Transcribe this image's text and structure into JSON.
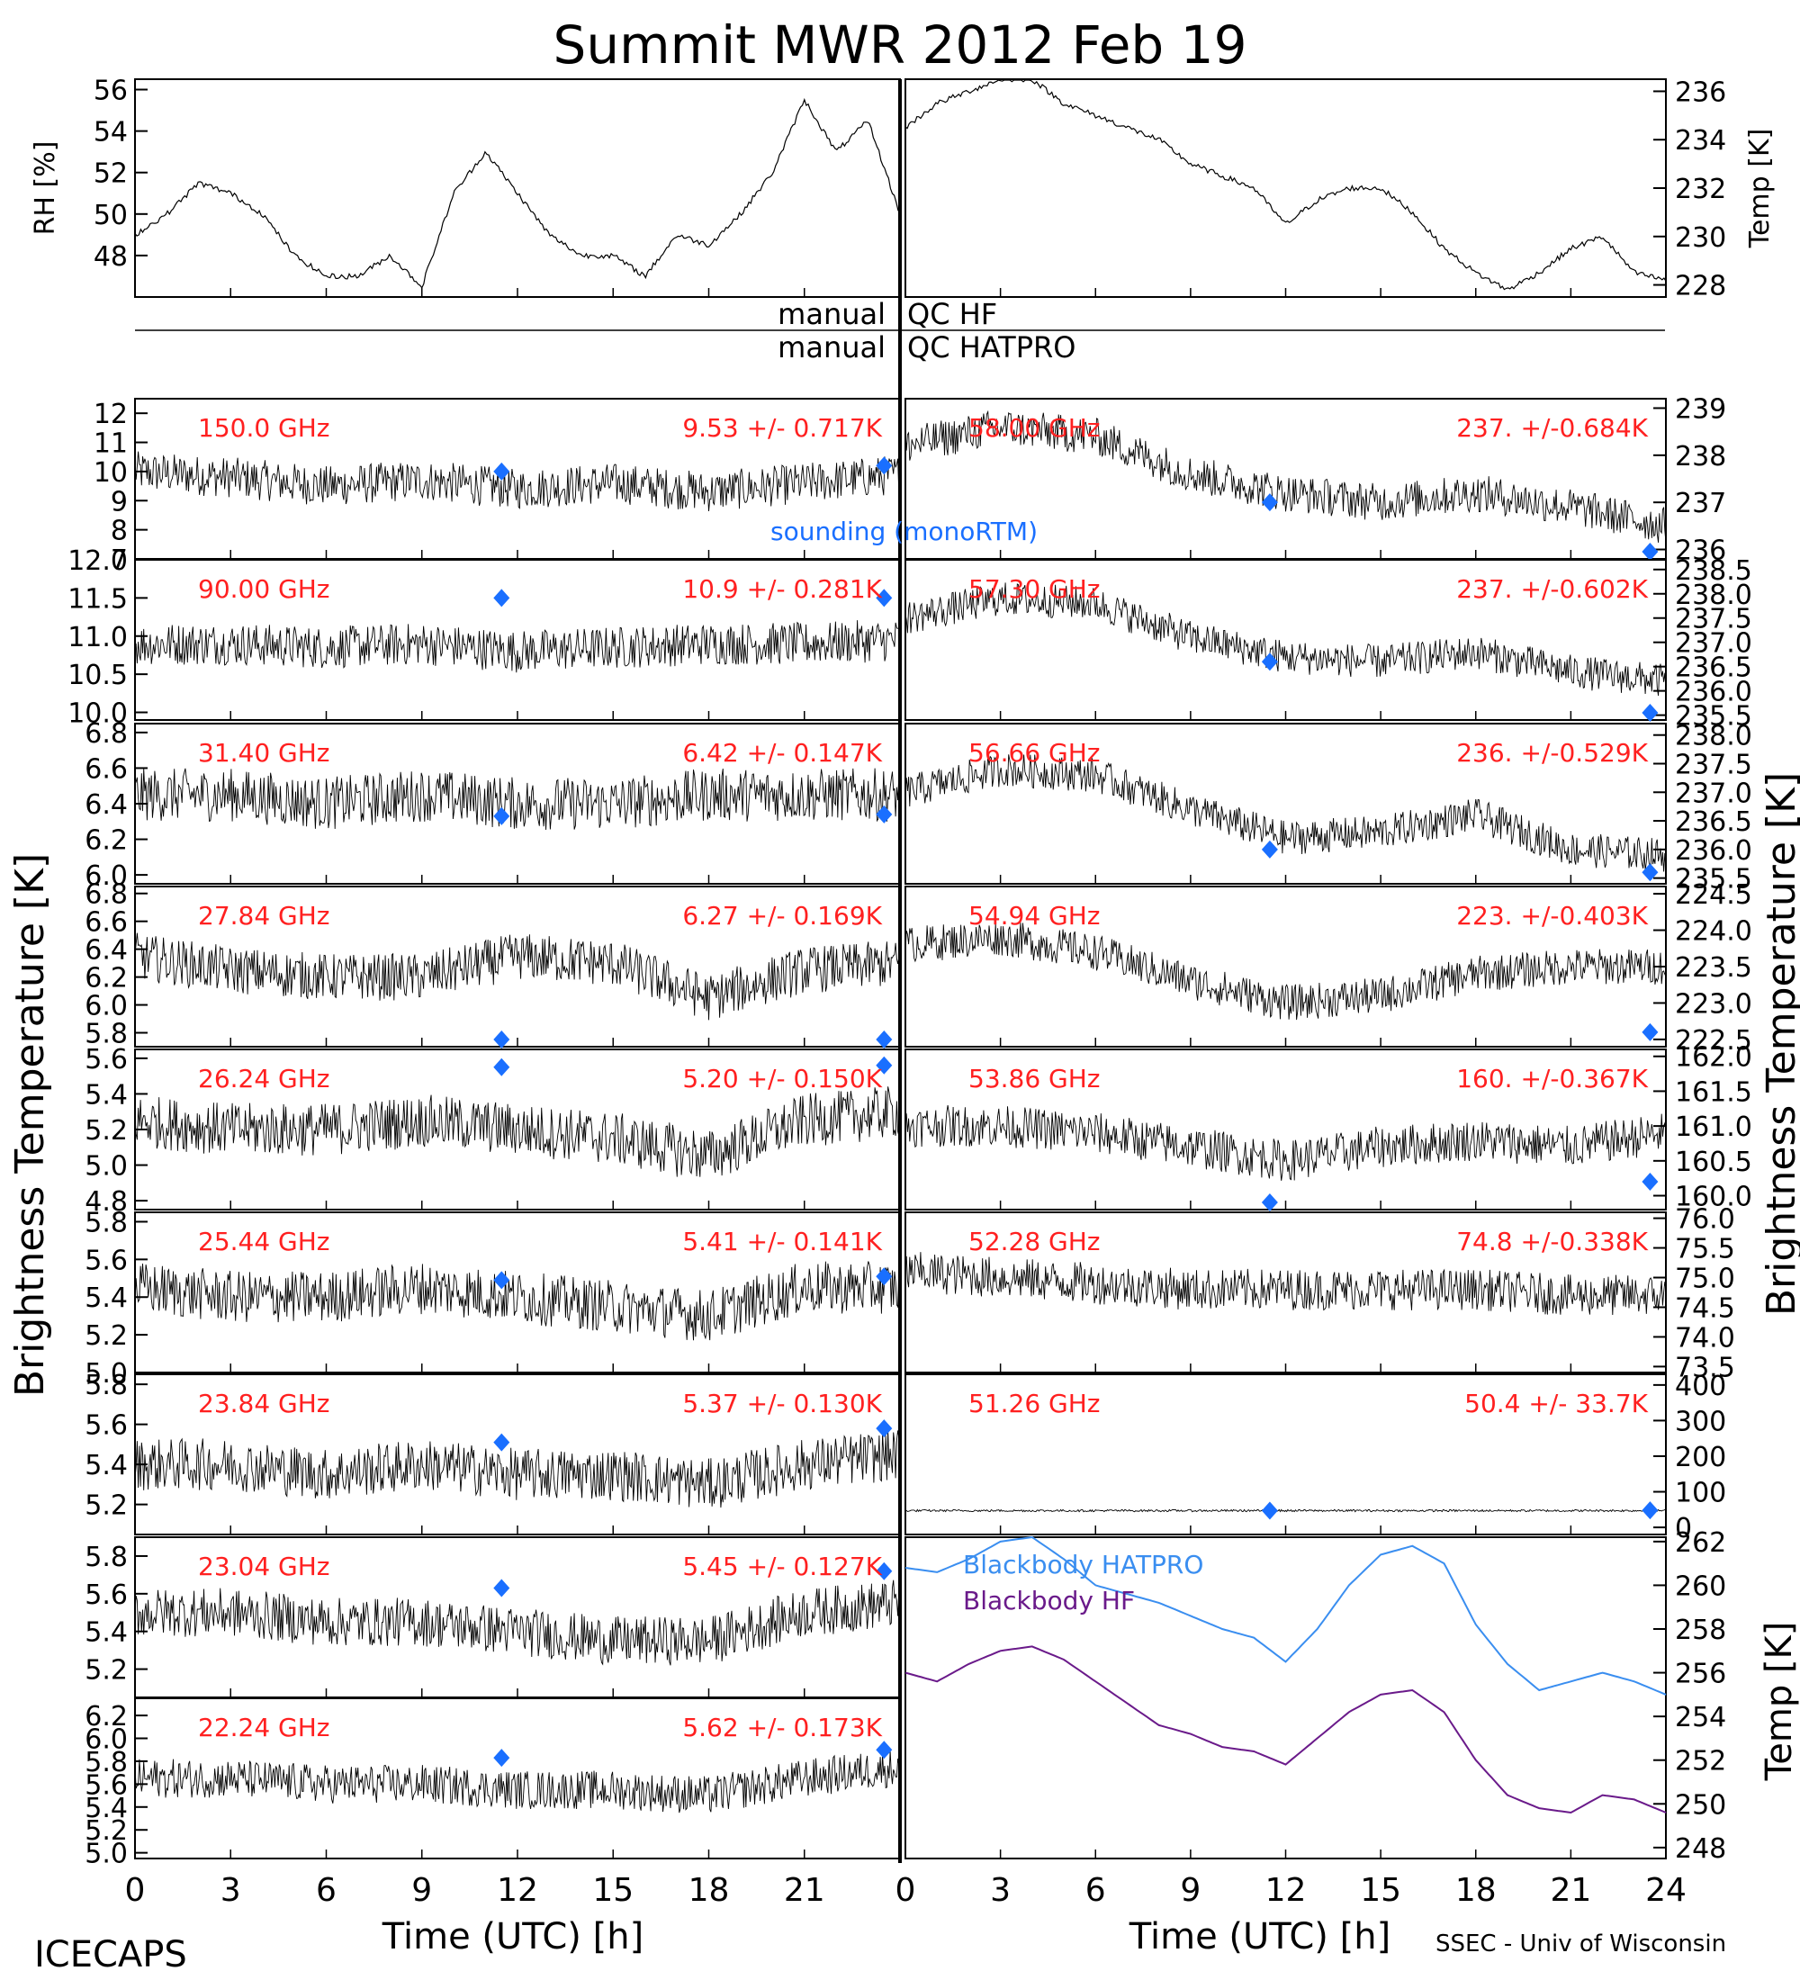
{
  "header": {
    "title": "Summit MWR 2012 Feb 19",
    "footer_left": "ICECAPS",
    "footer_right": "SSEC - Univ of Wisconsin",
    "ylabel_left": "Brightness Temperature [K]",
    "ylabel_right": "Brightness Temperature [K]"
  },
  "flags": {
    "hf_label_left": "manual",
    "hf_label_right": "QC HF",
    "hatpro_label_left": "manual",
    "hatpro_label_right": "QC HATPRO"
  },
  "axes": {
    "xlabel": "Time (UTC) [h]",
    "xticks": [
      "0",
      "3",
      "6",
      "9",
      "12",
      "15",
      "18",
      "21",
      "24"
    ]
  },
  "legend": {
    "sounding": "sounding (monoRTM)"
  },
  "colors": {
    "label_red": "#ff2020",
    "sounding_blue": "#1a6fff",
    "bb_hatpro": "#3a8ef0",
    "bb_hf": "#6a1a8a",
    "trace": "#000000"
  },
  "chart_data": [
    {
      "id": "rh",
      "type": "line",
      "ylabel": "RH [%]",
      "ylim": [
        46,
        56.5
      ],
      "yticks": [
        "48",
        "50",
        "52",
        "54",
        "56"
      ],
      "x": [
        0,
        1,
        2,
        3,
        4,
        5,
        6,
        7,
        8,
        9,
        10,
        11,
        12,
        13,
        14,
        15,
        16,
        17,
        18,
        19,
        20,
        21,
        22,
        23,
        24
      ],
      "y": [
        49,
        50,
        51.5,
        51,
        50,
        48,
        47,
        47,
        48,
        46.5,
        51,
        53,
        51,
        49,
        48,
        48,
        47,
        49,
        48.5,
        50,
        52,
        55.5,
        53,
        54.5,
        50
      ]
    },
    {
      "id": "temp",
      "type": "line",
      "ylabel": "Temp [K]",
      "ylim": [
        227.5,
        236.5
      ],
      "yticks": [
        "228",
        "230",
        "232",
        "234",
        "236"
      ],
      "x": [
        0,
        1,
        2,
        3,
        4,
        5,
        6,
        7,
        8,
        9,
        10,
        11,
        12,
        13,
        14,
        15,
        16,
        17,
        18,
        19,
        20,
        21,
        22,
        23,
        24
      ],
      "y": [
        234.5,
        235.5,
        236,
        236.5,
        236.5,
        235.5,
        235,
        234.5,
        234,
        233,
        232.5,
        232,
        230.5,
        231.5,
        232,
        232,
        231,
        229.5,
        228.5,
        227.8,
        228.5,
        229.5,
        230,
        228.5,
        228.2
      ]
    },
    {
      "id": "ch150",
      "type": "scatter",
      "freq": "150.0 GHz",
      "stats": "9.53 +/- 0.717K",
      "ylim": [
        7,
        12.5
      ],
      "yticks": [
        "7",
        "8",
        "9",
        "10",
        "11",
        "12"
      ],
      "x": [
        0,
        3,
        6,
        9,
        12,
        15,
        18,
        21,
        24
      ],
      "y": [
        10,
        9.8,
        9.5,
        9.7,
        9.4,
        9.6,
        9.3,
        9.6,
        9.9
      ],
      "noise": 0.7,
      "sounding": [
        {
          "x": 11.5,
          "y": 10
        },
        {
          "x": 23.5,
          "y": 10.2
        }
      ]
    },
    {
      "id": "ch90",
      "type": "scatter",
      "freq": "90.00 GHz",
      "stats": "10.9 +/- 0.281K",
      "ylim": [
        9.9,
        12.0
      ],
      "yticks": [
        "10.0",
        "10.5",
        "11.0",
        "11.5",
        "12.0"
      ],
      "x": [
        0,
        3,
        6,
        9,
        12,
        15,
        18,
        21,
        24
      ],
      "y": [
        10.9,
        10.9,
        10.85,
        10.9,
        10.8,
        10.85,
        10.9,
        10.9,
        10.95
      ],
      "noise": 0.28,
      "sounding": [
        {
          "x": 11.5,
          "y": 11.5
        },
        {
          "x": 23.5,
          "y": 11.5
        }
      ]
    },
    {
      "id": "ch3140",
      "type": "scatter",
      "freq": "31.40 GHz",
      "stats": "6.42 +/- 0.147K",
      "ylim": [
        5.95,
        6.85
      ],
      "yticks": [
        "6.0",
        "6.2",
        "6.4",
        "6.6",
        "6.8"
      ],
      "x": [
        0,
        3,
        6,
        9,
        12,
        15,
        18,
        21,
        24
      ],
      "y": [
        6.45,
        6.45,
        6.4,
        6.45,
        6.4,
        6.4,
        6.45,
        6.45,
        6.45
      ],
      "noise": 0.15,
      "sounding": [
        {
          "x": 11.5,
          "y": 6.33
        },
        {
          "x": 23.5,
          "y": 6.34
        }
      ]
    },
    {
      "id": "ch2784",
      "type": "scatter",
      "freq": "27.84 GHz",
      "stats": "6.27 +/- 0.169K",
      "ylim": [
        5.7,
        6.85
      ],
      "yticks": [
        "5.8",
        "6.0",
        "6.2",
        "6.4",
        "6.6",
        "6.8"
      ],
      "x": [
        0,
        3,
        6,
        9,
        12,
        15,
        18,
        21,
        24
      ],
      "y": [
        6.35,
        6.25,
        6.2,
        6.2,
        6.35,
        6.3,
        6.05,
        6.25,
        6.3
      ],
      "noise": 0.17,
      "sounding": [
        {
          "x": 11.5,
          "y": 5.72
        },
        {
          "x": 23.5,
          "y": 5.73
        }
      ]
    },
    {
      "id": "ch2624",
      "type": "scatter",
      "freq": "26.24 GHz",
      "stats": "5.20 +/- 0.150K",
      "ylim": [
        4.75,
        5.65
      ],
      "yticks": [
        "4.8",
        "5.0",
        "5.2",
        "5.4",
        "5.6"
      ],
      "x": [
        0,
        3,
        6,
        9,
        12,
        15,
        18,
        21,
        24
      ],
      "y": [
        5.25,
        5.2,
        5.2,
        5.25,
        5.2,
        5.15,
        5.05,
        5.25,
        5.3
      ],
      "noise": 0.15,
      "sounding": [
        {
          "x": 11.5,
          "y": 5.55
        },
        {
          "x": 23.5,
          "y": 5.56
        }
      ]
    },
    {
      "id": "ch2544",
      "type": "scatter",
      "freq": "25.44 GHz",
      "stats": "5.41 +/- 0.141K",
      "ylim": [
        5.0,
        5.85
      ],
      "yticks": [
        "5.0",
        "5.2",
        "5.4",
        "5.6",
        "5.8"
      ],
      "x": [
        0,
        3,
        6,
        9,
        12,
        15,
        18,
        21,
        24
      ],
      "y": [
        5.45,
        5.4,
        5.4,
        5.45,
        5.4,
        5.35,
        5.3,
        5.45,
        5.45
      ],
      "noise": 0.14,
      "sounding": [
        {
          "x": 11.5,
          "y": 5.49
        },
        {
          "x": 23.5,
          "y": 5.51
        }
      ]
    },
    {
      "id": "ch2384",
      "type": "scatter",
      "freq": "23.84 GHz",
      "stats": "5.37 +/- 0.130K",
      "ylim": [
        5.05,
        5.85
      ],
      "yticks": [
        "5.0",
        "5.2",
        "5.4",
        "5.6",
        "5.8"
      ],
      "x": [
        0,
        3,
        6,
        9,
        12,
        15,
        18,
        21,
        24
      ],
      "y": [
        5.4,
        5.4,
        5.35,
        5.4,
        5.35,
        5.35,
        5.3,
        5.4,
        5.45
      ],
      "noise": 0.13,
      "sounding": [
        {
          "x": 11.5,
          "y": 5.51
        },
        {
          "x": 23.5,
          "y": 5.58
        }
      ]
    },
    {
      "id": "ch2304",
      "type": "scatter",
      "freq": "23.04 GHz",
      "stats": "5.45 +/- 0.127K",
      "ylim": [
        5.05,
        5.9
      ],
      "yticks": [
        "5.0",
        "5.2",
        "5.4",
        "5.6",
        "5.8"
      ],
      "x": [
        0,
        3,
        6,
        9,
        12,
        15,
        18,
        21,
        24
      ],
      "y": [
        5.5,
        5.5,
        5.45,
        5.45,
        5.4,
        5.35,
        5.35,
        5.5,
        5.55
      ],
      "noise": 0.13,
      "sounding": [
        {
          "x": 11.5,
          "y": 5.63
        },
        {
          "x": 23.5,
          "y": 5.72
        }
      ]
    },
    {
      "id": "ch2224",
      "type": "scatter",
      "freq": "22.24 GHz",
      "stats": "5.62 +/- 0.173K",
      "ylim": [
        4.95,
        6.35
      ],
      "yticks": [
        "5.0",
        "5.2",
        "5.4",
        "5.6",
        "5.8",
        "6.0",
        "6.2"
      ],
      "x": [
        0,
        3,
        6,
        9,
        12,
        15,
        18,
        21,
        24
      ],
      "y": [
        5.65,
        5.65,
        5.6,
        5.6,
        5.55,
        5.55,
        5.5,
        5.65,
        5.75
      ],
      "noise": 0.17,
      "sounding": [
        {
          "x": 11.5,
          "y": 5.83
        },
        {
          "x": 23.5,
          "y": 5.9
        }
      ]
    },
    {
      "id": "ch5800",
      "type": "scatter",
      "freq": "58.00 GHz",
      "stats": "237. +/-0.684K",
      "ylim": [
        235.8,
        239.2
      ],
      "yticks": [
        "236",
        "237",
        "238",
        "239"
      ],
      "x": [
        0,
        3,
        6,
        9,
        12,
        15,
        18,
        21,
        24
      ],
      "y": [
        238.2,
        238.6,
        238.4,
        237.6,
        237.2,
        237,
        237.2,
        236.9,
        236.5
      ],
      "noise": 0.4,
      "sounding": [
        {
          "x": 11.5,
          "y": 237
        },
        {
          "x": 23.5,
          "y": 235.9
        }
      ]
    },
    {
      "id": "ch5730",
      "type": "scatter",
      "freq": "57.30 GHz",
      "stats": "237. +/-0.602K",
      "ylim": [
        235.4,
        238.7
      ],
      "yticks": [
        "235.5",
        "236.0",
        "236.5",
        "237.0",
        "237.5",
        "238.0",
        "238.5"
      ],
      "x": [
        0,
        3,
        6,
        9,
        12,
        15,
        18,
        21,
        24
      ],
      "y": [
        237.5,
        237.9,
        237.8,
        237.1,
        236.7,
        236.6,
        236.8,
        236.4,
        236.2
      ],
      "noise": 0.35,
      "sounding": [
        {
          "x": 11.5,
          "y": 236.6
        },
        {
          "x": 23.5,
          "y": 235.5
        }
      ]
    },
    {
      "id": "ch5666",
      "type": "scatter",
      "freq": "56.66 GHz",
      "stats": "236. +/-0.529K",
      "ylim": [
        235.4,
        238.2
      ],
      "yticks": [
        "235.5",
        "236.0",
        "236.5",
        "237.0",
        "237.5",
        "238.0"
      ],
      "x": [
        0,
        3,
        6,
        9,
        12,
        15,
        18,
        21,
        24
      ],
      "y": [
        237,
        237.4,
        237.3,
        236.7,
        236.2,
        236.3,
        236.6,
        236,
        235.9
      ],
      "noise": 0.3,
      "sounding": [
        {
          "x": 11.5,
          "y": 236
        },
        {
          "x": 23.5,
          "y": 235.6
        }
      ]
    },
    {
      "id": "ch5494",
      "type": "scatter",
      "freq": "54.94 GHz",
      "stats": "223. +/-0.403K",
      "ylim": [
        222.4,
        224.6
      ],
      "yticks": [
        "222.5",
        "223.0",
        "223.5",
        "224.0",
        "224.5"
      ],
      "x": [
        0,
        3,
        6,
        9,
        12,
        15,
        18,
        21,
        24
      ],
      "y": [
        223.8,
        223.9,
        223.7,
        223.3,
        223,
        223.1,
        223.4,
        223.5,
        223.5
      ],
      "noise": 0.25,
      "sounding": [
        {
          "x": 23.5,
          "y": 222.6
        }
      ]
    },
    {
      "id": "ch5386",
      "type": "scatter",
      "freq": "53.86 GHz",
      "stats": "160. +/-0.367K",
      "ylim": [
        159.8,
        162.1
      ],
      "yticks": [
        "160.0",
        "160.5",
        "161.0",
        "161.5",
        "162.0"
      ],
      "x": [
        0,
        3,
        6,
        9,
        12,
        15,
        18,
        21,
        24
      ],
      "y": [
        161,
        161,
        160.9,
        160.7,
        160.5,
        160.7,
        160.8,
        160.7,
        160.9
      ],
      "noise": 0.3,
      "sounding": [
        {
          "x": 11.5,
          "y": 159.9
        },
        {
          "x": 23.5,
          "y": 160.2
        }
      ]
    },
    {
      "id": "ch5228",
      "type": "scatter",
      "freq": "52.28 GHz",
      "stats": "74.8 +/-0.338K",
      "ylim": [
        73.4,
        76.1
      ],
      "yticks": [
        "73.5",
        "74.0",
        "74.5",
        "75.0",
        "75.5",
        "76.0"
      ],
      "x": [
        0,
        3,
        6,
        9,
        12,
        15,
        18,
        21,
        24
      ],
      "y": [
        75.1,
        75,
        74.9,
        74.8,
        74.8,
        74.8,
        74.8,
        74.7,
        74.7
      ],
      "noise": 0.35,
      "sounding": []
    },
    {
      "id": "ch5126",
      "type": "scatter",
      "freq": "51.26 GHz",
      "stats": "50.4 +/- 33.7K",
      "ylim": [
        -20,
        430
      ],
      "yticks": [
        "0",
        "100",
        "200",
        "300",
        "400"
      ],
      "x": [
        0,
        3,
        6,
        9,
        12,
        15,
        18,
        21,
        24
      ],
      "y": [
        47,
        47,
        47,
        47,
        47,
        47,
        47,
        47,
        47
      ],
      "noise": 3,
      "sounding": [
        {
          "x": 11.5,
          "y": 47
        },
        {
          "x": 23.5,
          "y": 48
        }
      ]
    },
    {
      "id": "blackbody",
      "type": "line",
      "ylabel": "Temp [K]",
      "ylim": [
        247.5,
        262.2
      ],
      "yticks": [
        "248",
        "250",
        "252",
        "254",
        "256",
        "258",
        "260",
        "262"
      ],
      "series": [
        {
          "name": "Blackbody HATPRO",
          "x": [
            0,
            1,
            2,
            3,
            4,
            5,
            6,
            7,
            8,
            9,
            10,
            11,
            12,
            13,
            14,
            15,
            16,
            17,
            18,
            19,
            20,
            21,
            22,
            23,
            24
          ],
          "y": [
            260.8,
            260.6,
            261.2,
            262,
            262.2,
            261.2,
            260,
            259.6,
            259.2,
            258.6,
            258,
            257.6,
            256.5,
            258,
            260,
            261.4,
            261.8,
            261,
            258.2,
            256.4,
            255.2,
            255.6,
            256,
            255.6,
            255
          ]
        },
        {
          "name": "Blackbody HF",
          "x": [
            0,
            1,
            2,
            3,
            4,
            5,
            6,
            7,
            8,
            9,
            10,
            11,
            12,
            13,
            14,
            15,
            16,
            17,
            18,
            19,
            20,
            21,
            22,
            23,
            24
          ],
          "y": [
            256,
            255.6,
            256.4,
            257,
            257.2,
            256.6,
            255.6,
            254.6,
            253.6,
            253.2,
            252.6,
            252.4,
            251.8,
            253,
            254.2,
            255,
            255.2,
            254.2,
            252,
            250.4,
            249.8,
            249.6,
            250.4,
            250.2,
            249.6
          ]
        }
      ]
    }
  ]
}
